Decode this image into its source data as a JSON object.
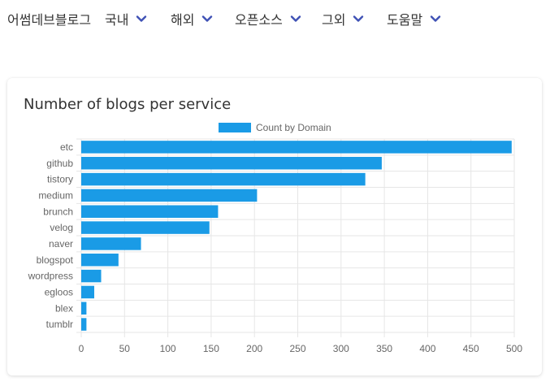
{
  "nav": {
    "brand": "어썸데브블로그",
    "items": [
      {
        "label": "국내"
      },
      {
        "label": "해외"
      },
      {
        "label": "오픈소스"
      },
      {
        "label": "그외"
      },
      {
        "label": "도움말"
      }
    ],
    "chevron_icon": "chevron-down-icon",
    "chevron_color": "#3f51b5"
  },
  "card": {
    "title": "Number of blogs per service"
  },
  "chart_data": {
    "type": "bar",
    "orientation": "horizontal",
    "title": "",
    "xlabel": "",
    "ylabel": "",
    "categories": [
      "etc",
      "github",
      "tistory",
      "medium",
      "brunch",
      "velog",
      "naver",
      "blogspot",
      "wordpress",
      "egloos",
      "blex",
      "tumblr"
    ],
    "series": [
      {
        "name": "Count by Domain",
        "color": "#1a9be6",
        "values": [
          497,
          347,
          328,
          203,
          158,
          148,
          69,
          43,
          23,
          15,
          6,
          6
        ]
      }
    ],
    "xlim": [
      0,
      500
    ],
    "xticks": [
      0,
      50,
      100,
      150,
      200,
      250,
      300,
      350,
      400,
      450,
      500
    ],
    "grid": true,
    "legend": "top-center"
  }
}
